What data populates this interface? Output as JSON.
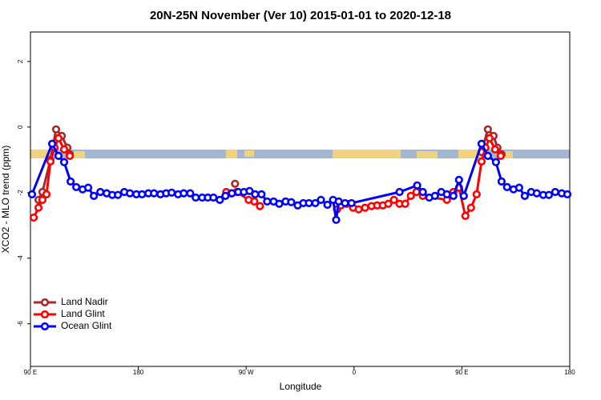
{
  "chart_data": {
    "type": "line",
    "title": "20N-25N November (Ver 10)   2015-01-01 to 2020-12-18",
    "x_label": "Longitude",
    "y_label": "XCO2 - MLO trend (ppm)",
    "xlim": [
      90,
      540
    ],
    "ylim": [
      -7.3,
      2.9
    ],
    "xticks": [
      {
        "value": 90,
        "label": "90 E"
      },
      180,
      {
        "value": 270,
        "label": "90 W"
      },
      {
        "value": 360,
        "label": "0"
      },
      {
        "value": 450,
        "label": "90 E"
      },
      {
        "value": 540,
        "label": "180"
      }
    ],
    "yticks": [
      2,
      0,
      -2,
      -4,
      -6
    ],
    "legend": "lower left",
    "series": [
      {
        "name": "Land Nadir",
        "color": "#a52a2a",
        "x": [
          96.7,
          100.0,
          106.7,
          111.4,
          116.1,
          120.8,
          122.8,
          null,
          260.7,
          null,
          466.4,
          471.7,
          476.4,
          479.7,
          483.1
        ],
        "values": [
          -2.22,
          -1.98,
          -1.0,
          -0.07,
          -0.27,
          -0.63,
          -0.83,
          null,
          -1.73,
          null,
          -0.76,
          -0.07,
          -0.27,
          -0.63,
          -0.83
        ]
      },
      {
        "name": "Land Glint",
        "color": "#ff0000",
        "x": [
          92.7,
          96.7,
          100.0,
          103.4,
          106.7,
          110.1,
          113.4,
          118.1,
          122.8,
          null,
          253.4,
          257.4,
          262.1,
          272.1,
          276.8,
          281.5,
          null,
          345.8,
          349.1,
          353.8,
          359.2,
          363.9,
          369.2,
          374.6,
          379.3,
          384.0,
          388.6,
          393.3,
          398.0,
          402.7,
          407.4,
          412.1,
          417.4,
          437.5,
          442.9,
          447.6,
          452.9,
          457.6,
          462.3,
          466.4,
          469.7,
          473.0,
          477.7,
          482.4
        ],
        "values": [
          -2.76,
          -2.46,
          -2.22,
          -2.05,
          -1.05,
          -0.63,
          -0.34,
          -0.68,
          -0.88,
          null,
          -1.98,
          -2.02,
          -1.98,
          -2.22,
          -2.27,
          -2.41,
          null,
          -2.51,
          -2.39,
          -2.34,
          -2.46,
          -2.51,
          -2.46,
          -2.41,
          -2.39,
          -2.39,
          -2.34,
          -2.22,
          -2.34,
          -2.34,
          -2.1,
          -1.98,
          -2.1,
          -2.22,
          -1.98,
          -1.85,
          -2.71,
          -2.46,
          -2.05,
          -1.05,
          -0.63,
          -0.34,
          -0.68,
          -0.88
        ]
      },
      {
        "name": "Ocean Glint",
        "color": "#0000ff",
        "x": [
          91.3,
          108.1,
          113.4,
          118.1,
          123.5,
          128.2,
          133.5,
          138.2,
          142.9,
          148.3,
          153.6,
          158.3,
          163.0,
          168.3,
          173.0,
          178.4,
          183.1,
          188.4,
          193.1,
          198.5,
          203.2,
          207.8,
          213.2,
          217.9,
          223.3,
          227.9,
          233.3,
          238.0,
          242.7,
          248.0,
          252.7,
          258.1,
          263.4,
          268.1,
          272.8,
          277.5,
          282.8,
          287.5,
          292.9,
          297.6,
          302.9,
          307.6,
          313.0,
          317.7,
          322.4,
          327.7,
          332.4,
          337.8,
          342.5,
          345.1,
          347.2,
          352.5,
          357.9,
          398.0,
          412.7,
          417.4,
          422.8,
          427.5,
          432.8,
          437.5,
          442.9,
          447.6,
          451.6,
          466.4,
          471.7,
          478.4,
          483.1,
          487.7,
          493.1,
          497.8,
          502.5,
          507.8,
          512.5,
          517.9,
          522.6,
          527.9,
          533.3,
          538.0
        ],
        "values": [
          -2.05,
          -0.51,
          -0.88,
          -1.07,
          -1.66,
          -1.83,
          -1.9,
          -1.85,
          -2.1,
          -1.98,
          -2.02,
          -2.07,
          -2.07,
          -1.98,
          -2.02,
          -2.05,
          -2.05,
          -2.02,
          -2.02,
          -2.05,
          -2.02,
          -2.0,
          -2.05,
          -2.02,
          -2.02,
          -2.15,
          -2.15,
          -2.15,
          -2.15,
          -2.22,
          -2.1,
          -2.02,
          -1.98,
          -1.98,
          -1.95,
          -2.05,
          -2.05,
          -2.27,
          -2.27,
          -2.34,
          -2.27,
          -2.29,
          -2.39,
          -2.32,
          -2.32,
          -2.32,
          -2.22,
          -2.37,
          -2.22,
          -2.83,
          -2.27,
          -2.32,
          -2.32,
          -1.98,
          -1.78,
          -1.98,
          -2.15,
          -2.1,
          -1.98,
          -2.05,
          -2.1,
          -1.61,
          -2.1,
          -0.51,
          -0.88,
          -1.07,
          -1.66,
          -1.83,
          -1.9,
          -1.85,
          -2.1,
          -1.98,
          -2.02,
          -2.07,
          -2.07,
          -1.98,
          -2.02,
          -2.05
        ]
      }
    ]
  }
}
